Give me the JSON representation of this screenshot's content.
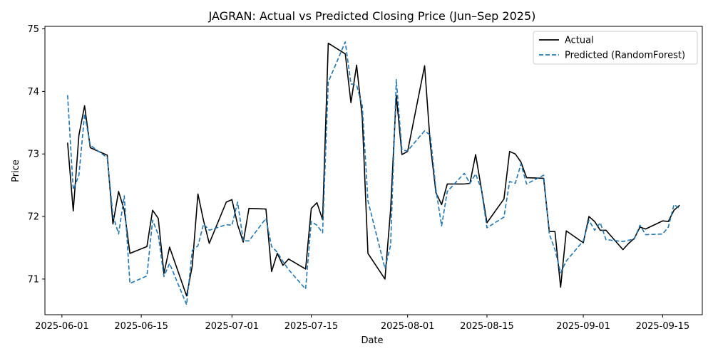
{
  "chart_data": {
    "type": "line",
    "title": "JAGRAN: Actual vs Predicted Closing Price (Jun–Sep 2025)",
    "xlabel": "Date",
    "ylabel": "Price",
    "x_range": [
      "2025-05-29",
      "2025-09-22"
    ],
    "ylim": [
      70.43,
      75.04
    ],
    "x_ticks": [
      "2025-06-01",
      "2025-06-15",
      "2025-07-01",
      "2025-07-15",
      "2025-08-01",
      "2025-08-15",
      "2025-09-01",
      "2025-09-15"
    ],
    "y_ticks": [
      71,
      72,
      73,
      74,
      75
    ],
    "grid": false,
    "legend_position": "top-right",
    "series": [
      {
        "name": "Actual",
        "color": "#000000",
        "style": "solid",
        "points": [
          [
            "2025-06-02",
            73.18
          ],
          [
            "2025-06-03",
            72.09
          ],
          [
            "2025-06-04",
            73.3
          ],
          [
            "2025-06-05",
            73.77
          ],
          [
            "2025-06-06",
            73.1
          ],
          [
            "2025-06-09",
            72.98
          ],
          [
            "2025-06-10",
            71.88
          ],
          [
            "2025-06-11",
            72.4
          ],
          [
            "2025-06-12",
            72.1
          ],
          [
            "2025-06-13",
            71.41
          ],
          [
            "2025-06-16",
            71.52
          ],
          [
            "2025-06-17",
            72.1
          ],
          [
            "2025-06-18",
            71.97
          ],
          [
            "2025-06-19",
            71.09
          ],
          [
            "2025-06-20",
            71.51
          ],
          [
            "2025-06-23",
            70.73
          ],
          [
            "2025-06-24",
            71.21
          ],
          [
            "2025-06-25",
            72.36
          ],
          [
            "2025-06-26",
            71.93
          ],
          [
            "2025-06-27",
            71.57
          ],
          [
            "2025-06-30",
            72.23
          ],
          [
            "2025-07-01",
            72.27
          ],
          [
            "2025-07-02",
            71.87
          ],
          [
            "2025-07-03",
            71.59
          ],
          [
            "2025-07-04",
            72.13
          ],
          [
            "2025-07-07",
            72.12
          ],
          [
            "2025-07-08",
            71.12
          ],
          [
            "2025-07-09",
            71.41
          ],
          [
            "2025-07-10",
            71.22
          ],
          [
            "2025-07-11",
            71.32
          ],
          [
            "2025-07-14",
            71.16
          ],
          [
            "2025-07-15",
            72.13
          ],
          [
            "2025-07-16",
            72.22
          ],
          [
            "2025-07-17",
            71.95
          ],
          [
            "2025-07-18",
            74.77
          ],
          [
            "2025-07-21",
            74.6
          ],
          [
            "2025-07-22",
            73.82
          ],
          [
            "2025-07-23",
            74.42
          ],
          [
            "2025-07-24",
            73.58
          ],
          [
            "2025-07-25",
            71.41
          ],
          [
            "2025-07-28",
            71.0
          ],
          [
            "2025-07-29",
            72.11
          ],
          [
            "2025-07-30",
            73.94
          ],
          [
            "2025-07-31",
            72.99
          ],
          [
            "2025-08-01",
            73.04
          ],
          [
            "2025-08-04",
            74.41
          ],
          [
            "2025-08-05",
            73.16
          ],
          [
            "2025-08-06",
            72.38
          ],
          [
            "2025-08-07",
            72.19
          ],
          [
            "2025-08-08",
            72.52
          ],
          [
            "2025-08-11",
            72.52
          ],
          [
            "2025-08-12",
            72.53
          ],
          [
            "2025-08-13",
            72.99
          ],
          [
            "2025-08-14",
            72.45
          ],
          [
            "2025-08-15",
            71.9
          ],
          [
            "2025-08-18",
            72.28
          ],
          [
            "2025-08-19",
            73.04
          ],
          [
            "2025-08-20",
            73.0
          ],
          [
            "2025-08-21",
            72.87
          ],
          [
            "2025-08-22",
            72.62
          ],
          [
            "2025-08-25",
            72.61
          ],
          [
            "2025-08-26",
            71.76
          ],
          [
            "2025-08-27",
            71.76
          ],
          [
            "2025-08-28",
            70.87
          ],
          [
            "2025-08-29",
            71.77
          ],
          [
            "2025-09-01",
            71.58
          ],
          [
            "2025-09-02",
            72.0
          ],
          [
            "2025-09-03",
            71.92
          ],
          [
            "2025-09-04",
            71.78
          ],
          [
            "2025-09-05",
            71.78
          ],
          [
            "2025-09-08",
            71.47
          ],
          [
            "2025-09-09",
            71.57
          ],
          [
            "2025-09-10",
            71.65
          ],
          [
            "2025-09-11",
            71.83
          ],
          [
            "2025-09-12",
            71.8
          ],
          [
            "2025-09-15",
            71.93
          ],
          [
            "2025-09-16",
            71.92
          ],
          [
            "2025-09-17",
            72.1
          ],
          [
            "2025-09-18",
            72.18
          ]
        ]
      },
      {
        "name": "Predicted (RandomForest)",
        "color": "#1f77b4",
        "style": "dashed",
        "points": [
          [
            "2025-06-02",
            73.94
          ],
          [
            "2025-06-03",
            72.43
          ],
          [
            "2025-06-04",
            72.66
          ],
          [
            "2025-06-05",
            73.64
          ],
          [
            "2025-06-06",
            73.14
          ],
          [
            "2025-06-09",
            72.94
          ],
          [
            "2025-06-10",
            72.02
          ],
          [
            "2025-06-11",
            71.72
          ],
          [
            "2025-06-12",
            72.33
          ],
          [
            "2025-06-13",
            70.93
          ],
          [
            "2025-06-16",
            71.05
          ],
          [
            "2025-06-17",
            71.94
          ],
          [
            "2025-06-18",
            71.71
          ],
          [
            "2025-06-19",
            71.04
          ],
          [
            "2025-06-20",
            71.25
          ],
          [
            "2025-06-23",
            70.59
          ],
          [
            "2025-06-24",
            71.46
          ],
          [
            "2025-06-25",
            71.53
          ],
          [
            "2025-06-26",
            71.88
          ],
          [
            "2025-06-27",
            71.78
          ],
          [
            "2025-06-30",
            71.87
          ],
          [
            "2025-07-01",
            71.86
          ],
          [
            "2025-07-02",
            72.23
          ],
          [
            "2025-07-03",
            71.61
          ],
          [
            "2025-07-04",
            71.61
          ],
          [
            "2025-07-07",
            71.97
          ],
          [
            "2025-07-08",
            71.52
          ],
          [
            "2025-07-09",
            71.43
          ],
          [
            "2025-07-10",
            71.28
          ],
          [
            "2025-07-11",
            71.15
          ],
          [
            "2025-07-14",
            70.84
          ],
          [
            "2025-07-15",
            71.92
          ],
          [
            "2025-07-16",
            71.86
          ],
          [
            "2025-07-17",
            71.74
          ],
          [
            "2025-07-18",
            74.15
          ],
          [
            "2025-07-21",
            74.79
          ],
          [
            "2025-07-22",
            74.12
          ],
          [
            "2025-07-23",
            74.1
          ],
          [
            "2025-07-24",
            73.77
          ],
          [
            "2025-07-25",
            72.25
          ],
          [
            "2025-07-28",
            71.17
          ],
          [
            "2025-07-29",
            71.54
          ],
          [
            "2025-07-30",
            74.19
          ],
          [
            "2025-07-31",
            73.06
          ],
          [
            "2025-08-01",
            73.05
          ],
          [
            "2025-08-04",
            73.37
          ],
          [
            "2025-08-05",
            73.3
          ],
          [
            "2025-08-06",
            72.43
          ],
          [
            "2025-08-07",
            71.85
          ],
          [
            "2025-08-08",
            72.4
          ],
          [
            "2025-08-11",
            72.69
          ],
          [
            "2025-08-12",
            72.53
          ],
          [
            "2025-08-13",
            72.68
          ],
          [
            "2025-08-14",
            72.44
          ],
          [
            "2025-08-15",
            71.82
          ],
          [
            "2025-08-18",
            71.99
          ],
          [
            "2025-08-19",
            72.56
          ],
          [
            "2025-08-20",
            72.53
          ],
          [
            "2025-08-21",
            72.84
          ],
          [
            "2025-08-22",
            72.52
          ],
          [
            "2025-08-25",
            72.66
          ],
          [
            "2025-08-26",
            71.72
          ],
          [
            "2025-08-27",
            71.47
          ],
          [
            "2025-08-28",
            71.1
          ],
          [
            "2025-08-29",
            71.29
          ],
          [
            "2025-09-01",
            71.61
          ],
          [
            "2025-09-02",
            71.94
          ],
          [
            "2025-09-03",
            71.78
          ],
          [
            "2025-09-04",
            71.9
          ],
          [
            "2025-09-05",
            71.63
          ],
          [
            "2025-09-08",
            71.6
          ],
          [
            "2025-09-09",
            71.62
          ],
          [
            "2025-09-10",
            71.64
          ],
          [
            "2025-09-11",
            71.86
          ],
          [
            "2025-09-12",
            71.71
          ],
          [
            "2025-09-15",
            71.72
          ],
          [
            "2025-09-16",
            71.83
          ],
          [
            "2025-09-17",
            72.19
          ],
          [
            "2025-09-18",
            72.13
          ]
        ]
      }
    ]
  }
}
